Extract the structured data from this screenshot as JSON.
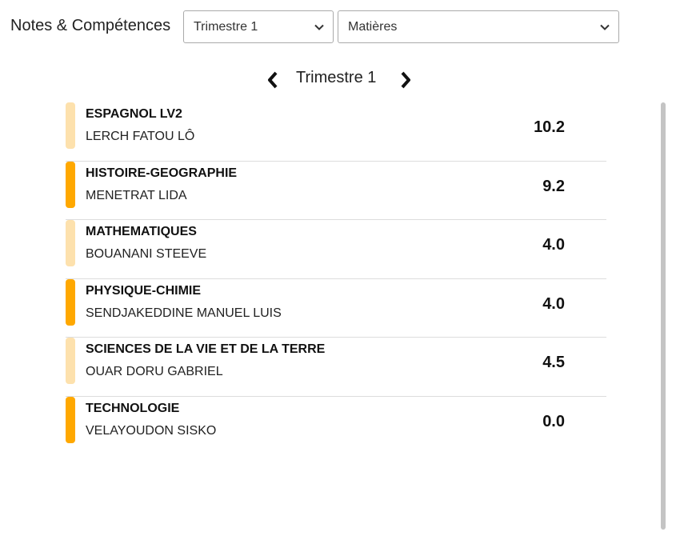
{
  "header": {
    "title": "Notes & Compétences",
    "period_select": {
      "value": "Trimestre 1"
    },
    "subject_select": {
      "value": "Matières"
    }
  },
  "period_nav": {
    "label": "Trimestre 1",
    "prev_icon": "chevron-left-icon",
    "next_icon": "chevron-right-icon"
  },
  "grades": [
    {
      "subject": "ESPAGNOL LV2",
      "teacher": "LERCH FATOU LÔ",
      "grade": "10.2",
      "bar_color": "#fde1ad"
    },
    {
      "subject": "HISTOIRE-GEOGRAPHIE",
      "teacher": "MENETRAT LIDA",
      "grade": "9.2",
      "bar_color": "#ffa800"
    },
    {
      "subject": "MATHEMATIQUES",
      "teacher": "BOUANANI STEEVE",
      "grade": "4.0",
      "bar_color": "#fde1ad"
    },
    {
      "subject": "PHYSIQUE-CHIMIE",
      "teacher": "SENDJAKEDDINE MANUEL LUIS",
      "grade": "4.0",
      "bar_color": "#ffa800"
    },
    {
      "subject": "SCIENCES DE LA VIE ET DE LA TERRE",
      "teacher": "OUAR DORU GABRIEL",
      "grade": "4.5",
      "bar_color": "#fde1ad"
    },
    {
      "subject": "TECHNOLOGIE",
      "teacher": "VELAYOUDON SISKO",
      "grade": "0.0",
      "bar_color": "#ffa800"
    }
  ]
}
